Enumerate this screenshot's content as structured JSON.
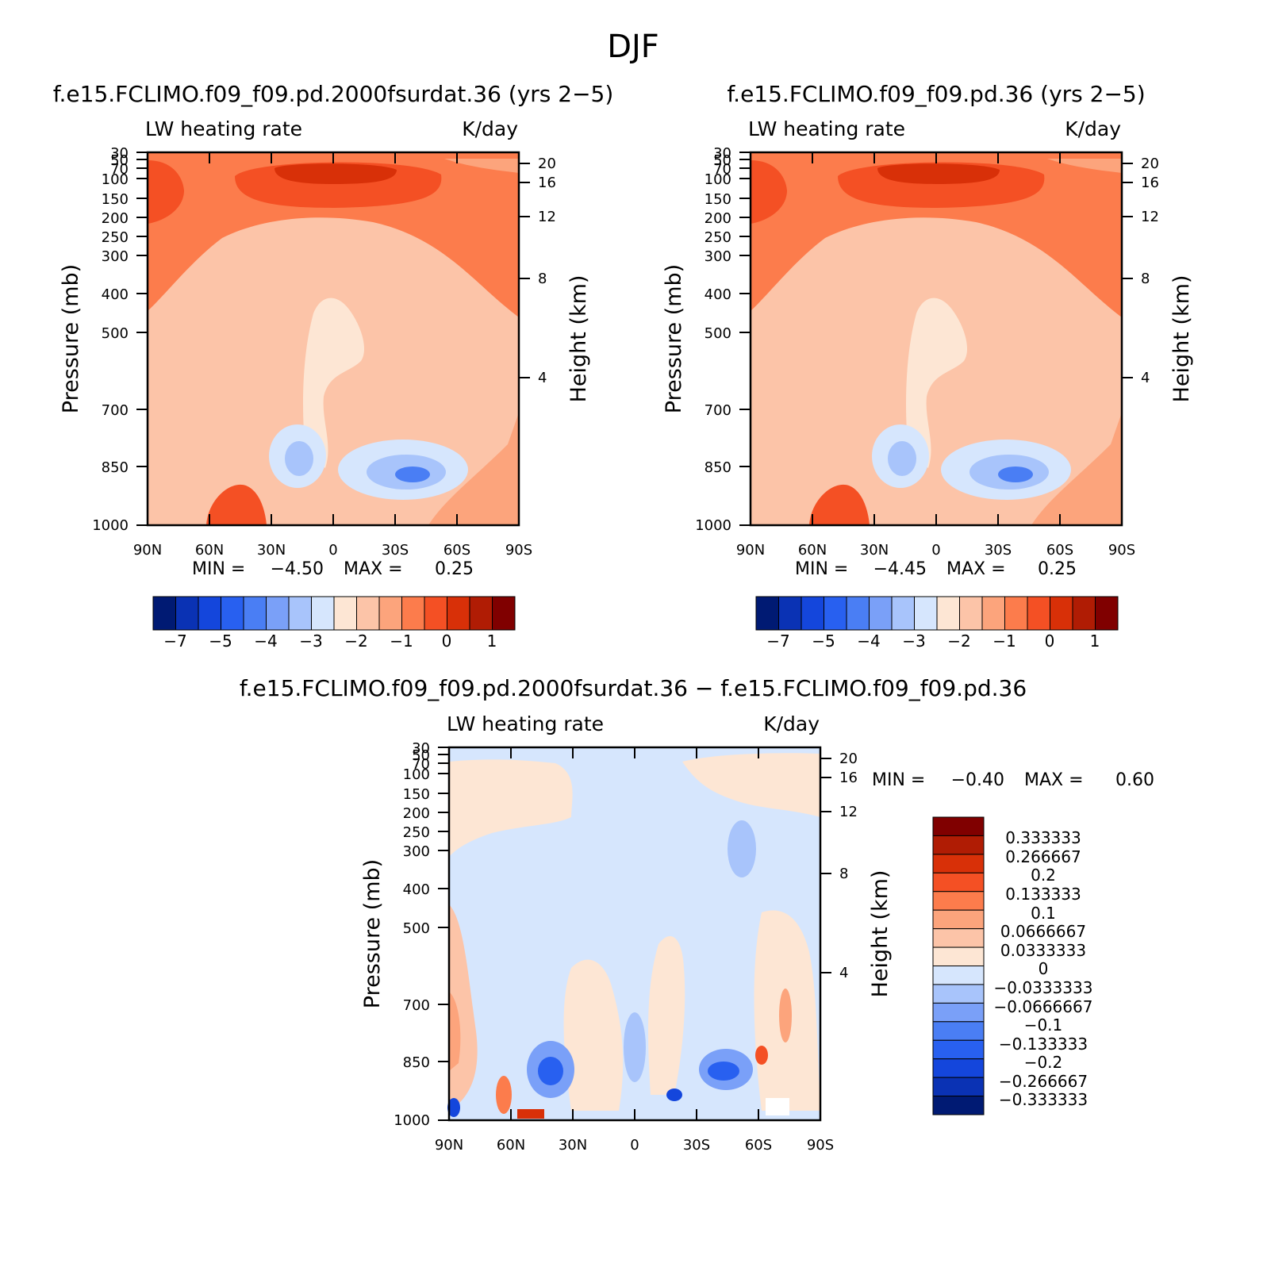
{
  "figure": {
    "title": "DJF"
  },
  "panels": [
    {
      "title": "f.e15.FCLIMO.f09_f09.pd.2000fsurdat.36 (yrs 2−5)",
      "left_label": "LW heating rate",
      "right_label": "K/day",
      "ylabel": "Pressure (mb)",
      "y2label": "Height (km)",
      "stats": {
        "min_label": "MIN =",
        "min_value": "−4.50",
        "max_label": "MAX =",
        "max_value": "0.25"
      }
    },
    {
      "title": "f.e15.FCLIMO.f09_f09.pd.36 (yrs 2−5)",
      "left_label": "LW heating rate",
      "right_label": "K/day",
      "ylabel": "Pressure (mb)",
      "y2label": "Height (km)",
      "stats": {
        "min_label": "MIN =",
        "min_value": "−4.45",
        "max_label": "MAX =",
        "max_value": "0.25"
      }
    },
    {
      "title": "f.e15.FCLIMO.f09_f09.pd.2000fsurdat.36 − f.e15.FCLIMO.f09_f09.pd.36",
      "left_label": "LW heating rate",
      "right_label": "K/day",
      "ylabel": "Pressure (mb)",
      "y2label": "Height (km)",
      "stats": {
        "min_label": "MIN =",
        "min_value": "−0.40",
        "max_label": "MAX =",
        "max_value": "0.60"
      }
    }
  ],
  "chart_data": [
    {
      "type": "heatmap",
      "title": "f.e15.FCLIMO.f09_f09.pd.2000fsurdat.36 (yrs 2−5)",
      "xlabel": "",
      "ylabel": "Pressure (mb)",
      "y2label": "Height (km)",
      "x_ticks": [
        "90N",
        "60N",
        "30N",
        "0",
        "30S",
        "60S",
        "90S"
      ],
      "y_ticks": [
        "30",
        "50",
        "70",
        "100",
        "150",
        "200",
        "250",
        "300",
        "400",
        "500",
        "700",
        "850",
        "1000"
      ],
      "y2_ticks": [
        "20",
        "16",
        "12",
        "8",
        "4"
      ],
      "colorbar_labels": [
        "−7",
        "−5",
        "−4",
        "−3",
        "−2",
        "−1",
        "0",
        "1"
      ],
      "colorbar_colors": [
        "#001a73",
        "#0a32b4",
        "#1446dc",
        "#2860f0",
        "#4a7ef4",
        "#7aa0f8",
        "#a8c4fb",
        "#d6e6fd",
        "#fde6d4",
        "#fcc4a8",
        "#fca47c",
        "#fc7c4c",
        "#f45024",
        "#d83008",
        "#b01c04",
        "#800000"
      ],
      "min": -4.5,
      "max": 0.25
    },
    {
      "type": "heatmap",
      "title": "f.e15.FCLIMO.f09_f09.pd.36 (yrs 2−5)",
      "xlabel": "",
      "ylabel": "Pressure (mb)",
      "y2label": "Height (km)",
      "x_ticks": [
        "90N",
        "60N",
        "30N",
        "0",
        "30S",
        "60S",
        "90S"
      ],
      "y_ticks": [
        "30",
        "50",
        "70",
        "100",
        "150",
        "200",
        "250",
        "300",
        "400",
        "500",
        "700",
        "850",
        "1000"
      ],
      "y2_ticks": [
        "20",
        "16",
        "12",
        "8",
        "4"
      ],
      "colorbar_labels": [
        "−7",
        "−5",
        "−4",
        "−3",
        "−2",
        "−1",
        "0",
        "1"
      ],
      "colorbar_colors": [
        "#001a73",
        "#0a32b4",
        "#1446dc",
        "#2860f0",
        "#4a7ef4",
        "#7aa0f8",
        "#a8c4fb",
        "#d6e6fd",
        "#fde6d4",
        "#fcc4a8",
        "#fca47c",
        "#fc7c4c",
        "#f45024",
        "#d83008",
        "#b01c04",
        "#800000"
      ],
      "min": -4.45,
      "max": 0.25
    },
    {
      "type": "heatmap",
      "title": "f.e15.FCLIMO.f09_f09.pd.2000fsurdat.36 − f.e15.FCLIMO.f09_f09.pd.36",
      "xlabel": "",
      "ylabel": "Pressure (mb)",
      "y2label": "Height (km)",
      "x_ticks": [
        "90N",
        "60N",
        "30N",
        "0",
        "30S",
        "60S",
        "90S"
      ],
      "y_ticks": [
        "30",
        "50",
        "70",
        "100",
        "150",
        "200",
        "250",
        "300",
        "400",
        "500",
        "700",
        "850",
        "1000"
      ],
      "y2_ticks": [
        "20",
        "16",
        "12",
        "8",
        "4"
      ],
      "colorbar_labels": [
        "0.333333",
        "0.266667",
        "0.2",
        "0.133333",
        "0.1",
        "0.0666667",
        "0.0333333",
        "0",
        "−0.0333333",
        "−0.0666667",
        "−0.1",
        "−0.133333",
        "−0.2",
        "−0.266667",
        "−0.333333"
      ],
      "colorbar_colors": [
        "#800000",
        "#b01c04",
        "#d83008",
        "#f45024",
        "#fc7c4c",
        "#fca47c",
        "#fcc4a8",
        "#fde6d4",
        "#d6e6fd",
        "#a8c4fb",
        "#7aa0f8",
        "#4a7ef4",
        "#2860f0",
        "#1446dc",
        "#0a32b4",
        "#001a73"
      ],
      "min": -0.4,
      "max": 0.6
    }
  ]
}
